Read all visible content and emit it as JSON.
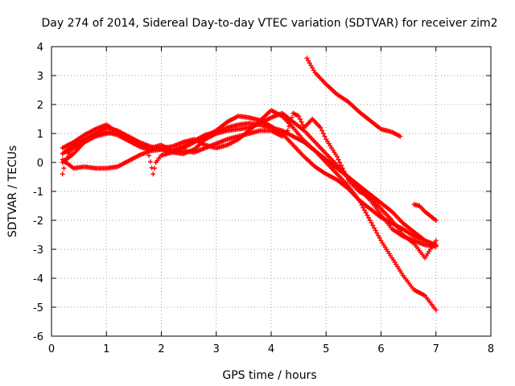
{
  "chart_data": {
    "type": "scatter",
    "title": "Day 274 of 2014, Sidereal Day-to-day VTEC variation (SDTVAR) for receiver zim2",
    "xlabel": "GPS time / hours",
    "ylabel": "SDTVAR / TECUs",
    "xlim": [
      0,
      8
    ],
    "ylim": [
      -6,
      4
    ],
    "xticks": [
      0,
      1,
      2,
      3,
      4,
      5,
      6,
      7,
      8
    ],
    "yticks": [
      -6,
      -5,
      -4,
      -3,
      -2,
      -1,
      0,
      1,
      2,
      3,
      4
    ],
    "grid": true,
    "marker": "+",
    "color": "#ff0000",
    "series": [
      {
        "name": "track-1",
        "x": [
          0.2,
          0.4,
          0.6,
          0.8,
          1.0,
          1.2,
          1.4,
          1.6,
          1.8,
          2.0,
          2.2,
          2.4,
          2.6,
          2.8,
          3.0,
          3.2,
          3.4,
          3.6,
          3.8,
          4.0,
          4.2,
          4.4,
          4.6,
          4.8,
          5.0,
          5.2,
          5.4,
          5.6,
          5.8,
          6.0,
          6.2,
          6.4,
          6.6,
          6.8,
          7.0
        ],
        "y": [
          0.5,
          0.7,
          0.95,
          1.15,
          1.3,
          1.05,
          0.8,
          0.6,
          0.5,
          0.6,
          0.4,
          0.5,
          0.7,
          0.9,
          1.1,
          1.4,
          1.6,
          1.55,
          1.45,
          1.25,
          1.0,
          0.6,
          0.2,
          -0.15,
          -0.4,
          -0.6,
          -0.9,
          -1.3,
          -1.6,
          -1.9,
          -2.1,
          -2.3,
          -2.55,
          -2.7,
          -2.85
        ]
      },
      {
        "name": "track-2",
        "x": [
          0.2,
          0.4,
          0.6,
          0.8,
          1.0,
          1.2,
          1.4,
          1.6,
          1.8,
          2.0,
          2.2,
          2.4,
          2.6,
          2.8,
          3.0,
          3.2,
          3.4,
          3.6,
          3.8,
          4.0,
          4.2,
          4.4,
          4.6,
          4.8,
          5.0,
          5.2,
          5.4,
          5.6,
          5.8,
          6.0,
          6.2,
          6.4,
          6.6,
          6.8,
          7.0
        ],
        "y": [
          0.1,
          -0.2,
          -0.15,
          -0.2,
          -0.2,
          -0.15,
          0.05,
          0.25,
          0.4,
          0.45,
          0.35,
          0.3,
          0.45,
          0.8,
          1.0,
          1.1,
          1.15,
          1.2,
          1.35,
          1.55,
          1.7,
          1.4,
          1.1,
          0.7,
          0.3,
          -0.1,
          -0.5,
          -0.9,
          -1.3,
          -1.8,
          -2.3,
          -2.55,
          -2.7,
          -2.85,
          -2.9
        ]
      },
      {
        "name": "track-3",
        "x": [
          0.2,
          0.4,
          0.6,
          0.8,
          1.0,
          1.2,
          1.4,
          1.6,
          1.8,
          2.0,
          2.2,
          2.4,
          2.6,
          2.8,
          3.0,
          3.2,
          3.4,
          3.6,
          3.8,
          4.0,
          4.2,
          4.4,
          4.6,
          4.8,
          5.0,
          5.2,
          5.4,
          5.6,
          5.8,
          6.0,
          6.2,
          6.4,
          6.6,
          6.8,
          7.0
        ],
        "y": [
          0.0,
          0.3,
          0.7,
          0.9,
          1.0,
          1.05,
          0.85,
          0.6,
          0.45,
          0.5,
          0.55,
          0.7,
          0.8,
          0.6,
          0.5,
          0.6,
          0.8,
          1.1,
          1.45,
          1.8,
          1.6,
          1.2,
          0.75,
          0.4,
          0.0,
          -0.4,
          -0.8,
          -1.3,
          -2.0,
          -2.7,
          -3.3,
          -3.9,
          -4.4,
          -4.6,
          -5.1
        ]
      },
      {
        "name": "track-4",
        "x": [
          0.2,
          0.4,
          0.6,
          0.8,
          1.0,
          1.2,
          1.4,
          1.6,
          1.8,
          2.0,
          2.2,
          2.4,
          2.6,
          2.8,
          3.0,
          3.2,
          3.4,
          3.6,
          3.8,
          4.0,
          4.2,
          4.4,
          4.6,
          4.8,
          5.0,
          5.2,
          5.4,
          5.6,
          5.8,
          6.0,
          6.2,
          6.4,
          6.6,
          6.8,
          7.0
        ],
        "y": [
          0.3,
          0.6,
          0.8,
          1.0,
          1.2,
          1.1,
          0.9,
          0.7,
          0.55,
          0.45,
          0.4,
          0.55,
          0.75,
          0.95,
          1.05,
          1.2,
          1.3,
          1.35,
          1.3,
          1.2,
          1.1,
          0.9,
          0.7,
          0.4,
          0.1,
          -0.2,
          -0.5,
          -0.8,
          -1.1,
          -1.4,
          -1.7,
          -2.1,
          -2.4,
          -2.7,
          -2.9
        ]
      },
      {
        "name": "track-5",
        "x": [
          0.2,
          0.25,
          0.3,
          0.4,
          0.5,
          0.6,
          0.7,
          0.8,
          1.0,
          1.2,
          1.4,
          1.6,
          1.75,
          1.85,
          1.9,
          2.0,
          2.2,
          2.4,
          2.6,
          2.8,
          3.0,
          3.2,
          3.4,
          3.6,
          3.8,
          4.0,
          4.2,
          4.3,
          4.4,
          4.5,
          4.6,
          4.75,
          4.9,
          5.0,
          5.2,
          5.4,
          5.6,
          5.8,
          6.0,
          6.2,
          6.4,
          6.6,
          6.8,
          7.0
        ],
        "y": [
          -0.4,
          0.0,
          0.3,
          0.5,
          0.6,
          0.7,
          0.85,
          0.95,
          1.05,
          0.95,
          0.75,
          0.55,
          0.45,
          -0.4,
          0.0,
          0.25,
          0.35,
          0.4,
          0.35,
          0.5,
          0.65,
          0.8,
          0.9,
          1.0,
          1.1,
          1.1,
          0.9,
          1.1,
          1.7,
          1.6,
          1.2,
          1.5,
          1.2,
          0.8,
          0.2,
          -0.6,
          -1.0,
          -1.2,
          -1.6,
          -2.0,
          -2.5,
          -2.8,
          -3.3,
          -2.7
        ]
      },
      {
        "name": "track-6",
        "x": [
          4.65,
          4.8,
          5.0,
          5.2,
          5.4,
          5.6,
          5.8,
          6.0,
          6.2,
          6.35
        ],
        "y": [
          3.6,
          3.1,
          2.7,
          2.35,
          2.1,
          1.75,
          1.45,
          1.15,
          1.05,
          0.9
        ]
      },
      {
        "name": "track-7",
        "x": [
          6.6,
          6.7,
          6.8,
          6.9,
          7.0
        ],
        "y": [
          -1.45,
          -1.5,
          -1.7,
          -1.85,
          -2.0
        ]
      }
    ]
  }
}
